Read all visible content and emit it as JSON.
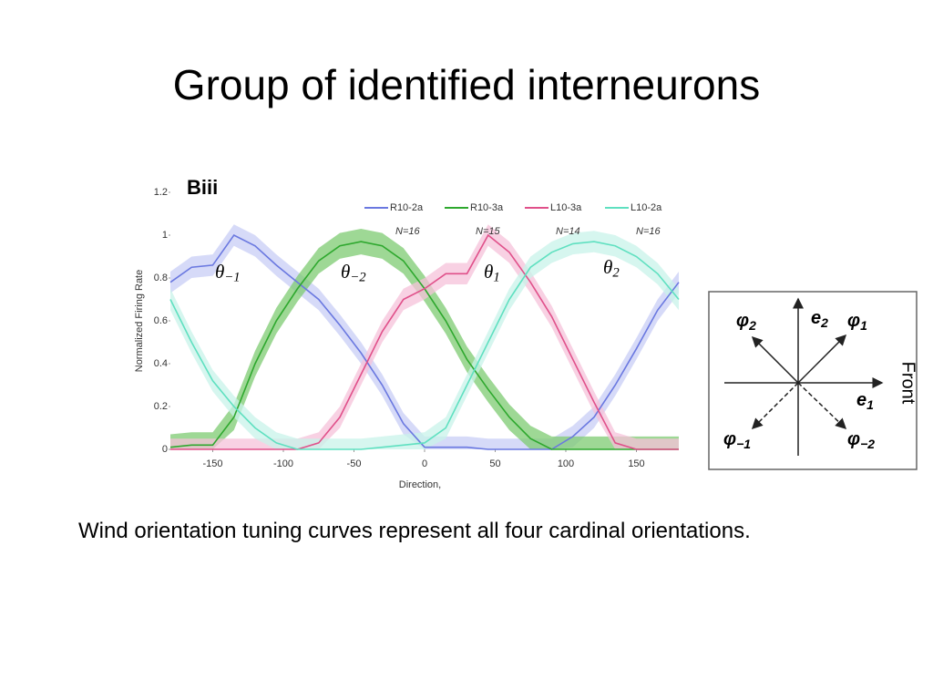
{
  "title": "Group of identified interneurons",
  "caption": "Wind orientation tuning curves represent all four cardinal orientations.",
  "chart_data": {
    "type": "line",
    "panel_label": "Biii",
    "x_label": "Direction,",
    "y_label": "Normalized Firing Rate",
    "x": [
      -180,
      -165,
      -150,
      -135,
      -120,
      -105,
      -90,
      -75,
      -60,
      -45,
      -30,
      -15,
      0,
      15,
      30,
      45,
      60,
      75,
      90,
      105,
      120,
      135,
      150,
      165,
      180
    ],
    "xlim": [
      -180,
      180
    ],
    "xticks": [
      -150,
      -100,
      -50,
      0,
      50,
      100,
      150
    ],
    "ylim": [
      0,
      1.2
    ],
    "yticks": [
      0,
      0.2,
      0.4,
      0.6,
      0.8,
      1,
      1.2
    ],
    "series": [
      {
        "name": "R10-2a",
        "note": "N=16",
        "color": "#6a78e0",
        "band_color": "#c8cdf5",
        "error": 0.05,
        "values": [
          0.78,
          0.85,
          0.86,
          1.0,
          0.95,
          0.86,
          0.78,
          0.7,
          0.58,
          0.45,
          0.3,
          0.12,
          0.01,
          0.01,
          0.01,
          0,
          0,
          0,
          0,
          0.06,
          0.15,
          0.3,
          0.47,
          0.65,
          0.78
        ]
      },
      {
        "name": "R10-3a",
        "note": "N=15",
        "color": "#2ea82e",
        "band_color": "#7dcb72",
        "error": 0.06,
        "values": [
          0.01,
          0.02,
          0.02,
          0.15,
          0.4,
          0.6,
          0.75,
          0.88,
          0.95,
          0.97,
          0.95,
          0.88,
          0.75,
          0.6,
          0.42,
          0.28,
          0.15,
          0.05,
          0,
          0,
          0,
          0,
          0,
          0,
          0
        ]
      },
      {
        "name": "L10-3a",
        "note": "N=14",
        "color": "#e0508a",
        "band_color": "#f6c2da",
        "error": 0.05,
        "values": [
          0,
          0,
          0,
          0,
          0,
          0,
          0,
          0.03,
          0.15,
          0.35,
          0.55,
          0.7,
          0.75,
          0.82,
          0.82,
          1.0,
          0.92,
          0.78,
          0.62,
          0.42,
          0.22,
          0.03,
          0,
          0,
          0
        ]
      },
      {
        "name": "L10-2a",
        "note": "N=16",
        "color": "#5fe0c0",
        "band_color": "#c8f3ea",
        "error": 0.05,
        "values": [
          0.7,
          0.5,
          0.32,
          0.2,
          0.1,
          0.03,
          0,
          0,
          0,
          0,
          0.01,
          0.02,
          0.03,
          0.1,
          0.3,
          0.5,
          0.7,
          0.85,
          0.92,
          0.96,
          0.97,
          0.95,
          0.9,
          0.82,
          0.7
        ]
      }
    ],
    "annotations": [
      {
        "symbol": "θ",
        "subscript": "−1"
      },
      {
        "symbol": "θ",
        "subscript": "−2"
      },
      {
        "symbol": "θ",
        "subscript": "1"
      },
      {
        "symbol": "θ",
        "subscript": "2"
      }
    ]
  },
  "diagram": {
    "labels": [
      {
        "symbol": "φ",
        "subscript": "2"
      },
      {
        "symbol": "e",
        "subscript": "2"
      },
      {
        "symbol": "φ",
        "subscript": "1"
      },
      {
        "symbol": "e",
        "subscript": "1"
      },
      {
        "symbol": "φ",
        "subscript": "−1"
      },
      {
        "symbol": "φ",
        "subscript": "−2"
      }
    ],
    "side_label": "Front"
  }
}
